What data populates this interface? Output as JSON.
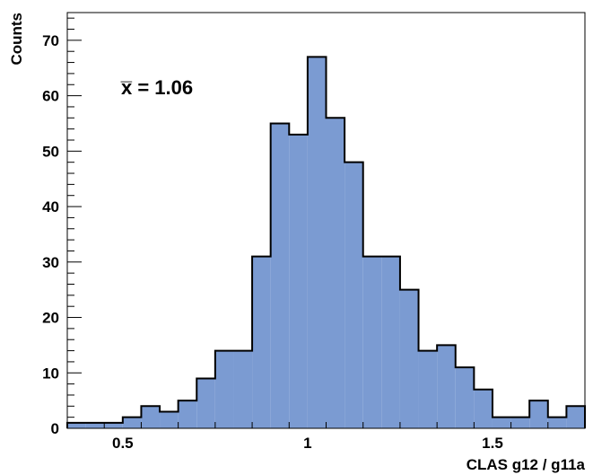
{
  "chart_data": {
    "type": "bar",
    "title": "",
    "xlabel": "CLAS g12 / g11a",
    "ylabel": "Counts",
    "annotation": "x̅ = 1.06",
    "xlim": [
      0.35,
      1.75
    ],
    "ylim": [
      0,
      75
    ],
    "bin_width": 0.05,
    "x": [
      0.375,
      0.425,
      0.475,
      0.525,
      0.575,
      0.625,
      0.675,
      0.725,
      0.775,
      0.825,
      0.875,
      0.925,
      0.975,
      1.025,
      1.075,
      1.125,
      1.175,
      1.225,
      1.275,
      1.325,
      1.375,
      1.425,
      1.475,
      1.525,
      1.575,
      1.625,
      1.675,
      1.725
    ],
    "values": [
      1,
      1,
      1,
      2,
      4,
      3,
      5,
      9,
      14,
      14,
      31,
      55,
      53,
      67,
      56,
      48,
      31,
      31,
      25,
      14,
      15,
      11,
      7,
      2,
      2,
      5,
      2,
      4
    ],
    "xticks": [
      0.5,
      1,
      1.5
    ],
    "xtick_labels": [
      "0.5",
      "1",
      "1.5"
    ],
    "yticks": [
      0,
      10,
      20,
      30,
      40,
      50,
      60,
      70
    ],
    "ytick_labels": [
      "0",
      "10",
      "20",
      "30",
      "40",
      "50",
      "60",
      "70"
    ],
    "grid": false,
    "legend": "none",
    "colors": {
      "fill": "#7b9bd2",
      "stroke": "#000000",
      "frame": "#000000"
    }
  }
}
